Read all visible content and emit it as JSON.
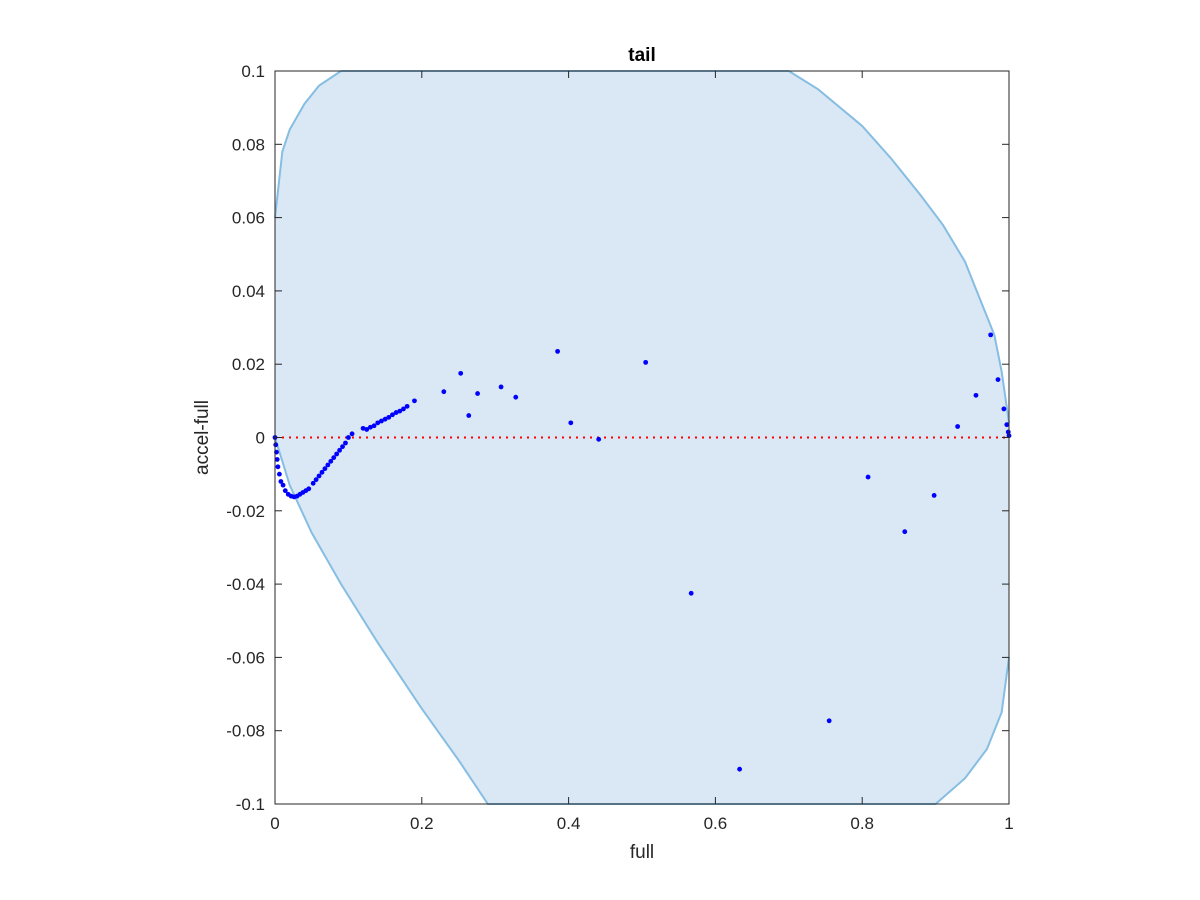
{
  "chart_data": {
    "type": "scatter",
    "title": "tail",
    "xlabel": "full",
    "ylabel": "accel-full",
    "xlim": [
      0,
      1
    ],
    "ylim": [
      -0.1,
      0.1
    ],
    "xticks": [
      "0",
      "0.2",
      "0.4",
      "0.6",
      "0.8",
      "1"
    ],
    "xtick_values": [
      0,
      0.2,
      0.4,
      0.6,
      0.8,
      1
    ],
    "yticks": [
      "0.1",
      "0.08",
      "0.06",
      "0.04",
      "0.02",
      "0",
      "-0.02",
      "-0.04",
      "-0.06",
      "-0.08",
      "-0.1"
    ],
    "ytick_values": [
      0.1,
      0.08,
      0.06,
      0.04,
      0.02,
      0,
      -0.02,
      -0.04,
      -0.06,
      -0.08,
      -0.1
    ],
    "grid": false,
    "reference_line": {
      "y": 0,
      "style": "dotted",
      "color": "#ff0000"
    },
    "band": {
      "fill": "#d9e8f4",
      "stroke": "#86bde2",
      "upper": [
        [
          0,
          0.06
        ],
        [
          0.01,
          0.078
        ],
        [
          0.02,
          0.084
        ],
        [
          0.04,
          0.091
        ],
        [
          0.06,
          0.096
        ],
        [
          0.09,
          0.1
        ],
        [
          0.7,
          0.1
        ],
        [
          0.74,
          0.095
        ],
        [
          0.8,
          0.085
        ],
        [
          0.84,
          0.076
        ],
        [
          0.88,
          0.066
        ],
        [
          0.91,
          0.058
        ],
        [
          0.94,
          0.048
        ],
        [
          0.96,
          0.038
        ],
        [
          0.98,
          0.028
        ],
        [
          0.99,
          0.018
        ],
        [
          1,
          0.004
        ]
      ],
      "lower": [
        [
          0,
          0
        ],
        [
          0.02,
          -0.013
        ],
        [
          0.05,
          -0.026
        ],
        [
          0.09,
          -0.04
        ],
        [
          0.14,
          -0.056
        ],
        [
          0.2,
          -0.074
        ],
        [
          0.25,
          -0.088
        ],
        [
          0.29,
          -0.1
        ],
        [
          0.9,
          -0.1
        ],
        [
          0.94,
          -0.093
        ],
        [
          0.97,
          -0.085
        ],
        [
          0.99,
          -0.075
        ],
        [
          1,
          -0.06
        ]
      ]
    },
    "series": [
      {
        "color": "#0000ff",
        "points": [
          [
            0,
            0
          ],
          [
            0.001,
            -0.002
          ],
          [
            0.002,
            -0.004
          ],
          [
            0.003,
            -0.006
          ],
          [
            0.004,
            -0.008
          ],
          [
            0.006,
            -0.01
          ],
          [
            0.008,
            -0.012
          ],
          [
            0.011,
            -0.013
          ],
          [
            0.014,
            -0.0145
          ],
          [
            0.018,
            -0.0155
          ],
          [
            0.022,
            -0.016
          ],
          [
            0.026,
            -0.0162
          ],
          [
            0.03,
            -0.016
          ],
          [
            0.034,
            -0.0155
          ],
          [
            0.038,
            -0.015
          ],
          [
            0.042,
            -0.0145
          ],
          [
            0.046,
            -0.014
          ],
          [
            0.052,
            -0.0125
          ],
          [
            0.056,
            -0.0115
          ],
          [
            0.06,
            -0.0105
          ],
          [
            0.064,
            -0.0095
          ],
          [
            0.068,
            -0.0085
          ],
          [
            0.072,
            -0.0075
          ],
          [
            0.076,
            -0.0065
          ],
          [
            0.08,
            -0.0055
          ],
          [
            0.084,
            -0.0045
          ],
          [
            0.088,
            -0.0035
          ],
          [
            0.092,
            -0.0025
          ],
          [
            0.096,
            -0.0015
          ],
          [
            0.1,
            0
          ],
          [
            0.105,
            0.001
          ],
          [
            0.12,
            0.0025
          ],
          [
            0.125,
            0.0022
          ],
          [
            0.13,
            0.0028
          ],
          [
            0.135,
            0.0032
          ],
          [
            0.14,
            0.004
          ],
          [
            0.145,
            0.0045
          ],
          [
            0.15,
            0.005
          ],
          [
            0.155,
            0.0055
          ],
          [
            0.16,
            0.0062
          ],
          [
            0.165,
            0.0068
          ],
          [
            0.17,
            0.0072
          ],
          [
            0.175,
            0.0078
          ],
          [
            0.18,
            0.0085
          ],
          [
            0.19,
            0.01
          ],
          [
            0.23,
            0.0125
          ],
          [
            0.253,
            0.0175
          ],
          [
            0.264,
            0.006
          ],
          [
            0.276,
            0.012
          ],
          [
            0.308,
            0.0138
          ],
          [
            0.328,
            0.011
          ],
          [
            0.385,
            0.0235
          ],
          [
            0.403,
            0.004
          ],
          [
            0.441,
            -0.0005
          ],
          [
            0.505,
            0.0205
          ],
          [
            0.567,
            -0.0425
          ],
          [
            0.633,
            -0.0905
          ],
          [
            0.755,
            -0.0773
          ],
          [
            0.808,
            -0.0108
          ],
          [
            0.858,
            -0.0257
          ],
          [
            0.898,
            -0.0158
          ],
          [
            0.93,
            0.003
          ],
          [
            0.955,
            0.0115
          ],
          [
            0.975,
            0.028
          ],
          [
            0.985,
            0.0158
          ],
          [
            0.993,
            0.0078
          ],
          [
            0.997,
            0.0035
          ],
          [
            0.999,
            0.0015
          ],
          [
            1,
            0.0005
          ]
        ]
      }
    ]
  }
}
